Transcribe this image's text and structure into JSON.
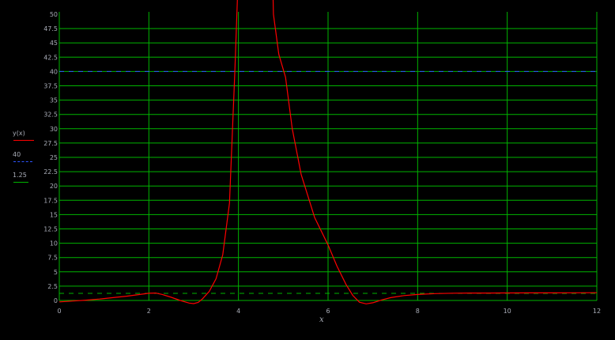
{
  "chart_data": {
    "type": "line",
    "title": "",
    "xlabel": "x",
    "ylabel": "",
    "xlim": [
      0,
      12
    ],
    "ylim": [
      0,
      50
    ],
    "grid": true,
    "grid_color": "#00b400",
    "background_color": "#000000",
    "axis_text_color": "#a9adb8",
    "x_ticks": [
      "0",
      "2",
      "4",
      "6",
      "8",
      "10",
      "12"
    ],
    "y_ticks": [
      "0",
      "2.5",
      "5",
      "7.5",
      "10",
      "12.5",
      "15",
      "17.5",
      "20",
      "22.5",
      "25",
      "27.5",
      "30",
      "32.5",
      "35",
      "37.5",
      "40",
      "42.5",
      "45",
      "47.5",
      "50"
    ],
    "reference_lines": [
      {
        "label": "40",
        "value": 40,
        "color": "#2d55ff",
        "style": "dashed"
      },
      {
        "label": "1.25",
        "value": 1.25,
        "color": "#00b400",
        "style": "dashed"
      }
    ],
    "legend": {
      "position": "left",
      "entries": [
        {
          "label": "y(x)",
          "color": "#ff0000",
          "style": "solid"
        },
        {
          "label": "40",
          "color": "#2d55ff",
          "style": "dashed"
        },
        {
          "label": "1.25",
          "color": "#00b400",
          "style": "solid"
        }
      ]
    },
    "series": [
      {
        "name": "y(x)",
        "color": "#ff0000",
        "points": [
          [
            0,
            -0.25
          ],
          [
            0.3,
            -0.1
          ],
          [
            0.6,
            0.05
          ],
          [
            0.9,
            0.25
          ],
          [
            1.2,
            0.5
          ],
          [
            1.5,
            0.75
          ],
          [
            1.8,
            1.05
          ],
          [
            2.0,
            1.25
          ],
          [
            2.15,
            1.3
          ],
          [
            2.3,
            1.05
          ],
          [
            2.5,
            0.55
          ],
          [
            2.7,
            0.0
          ],
          [
            2.9,
            -0.45
          ],
          [
            3.0,
            -0.55
          ],
          [
            3.1,
            -0.35
          ],
          [
            3.2,
            0.3
          ],
          [
            3.35,
            1.6
          ],
          [
            3.5,
            3.8
          ],
          [
            3.65,
            8.0
          ],
          [
            3.8,
            17
          ],
          [
            3.92,
            40
          ],
          [
            4.0,
            58
          ],
          [
            4.1,
            110
          ],
          [
            4.25,
            200
          ],
          [
            4.55,
            200
          ],
          [
            4.7,
            80
          ],
          [
            4.78,
            50
          ],
          [
            4.9,
            43
          ],
          [
            5.05,
            39
          ],
          [
            5.2,
            30
          ],
          [
            5.4,
            22
          ],
          [
            5.7,
            14.5
          ],
          [
            6.0,
            9.7
          ],
          [
            6.2,
            6.0
          ],
          [
            6.4,
            2.8
          ],
          [
            6.55,
            0.9
          ],
          [
            6.7,
            -0.3
          ],
          [
            6.85,
            -0.6
          ],
          [
            7.0,
            -0.4
          ],
          [
            7.2,
            0.1
          ],
          [
            7.4,
            0.5
          ],
          [
            7.7,
            0.85
          ],
          [
            8.0,
            1.05
          ],
          [
            8.4,
            1.2
          ],
          [
            8.8,
            1.27
          ],
          [
            9.2,
            1.3
          ],
          [
            9.6,
            1.3
          ],
          [
            10.0,
            1.31
          ],
          [
            10.5,
            1.32
          ],
          [
            11.0,
            1.33
          ],
          [
            11.5,
            1.34
          ],
          [
            12.0,
            1.35
          ]
        ]
      }
    ]
  }
}
